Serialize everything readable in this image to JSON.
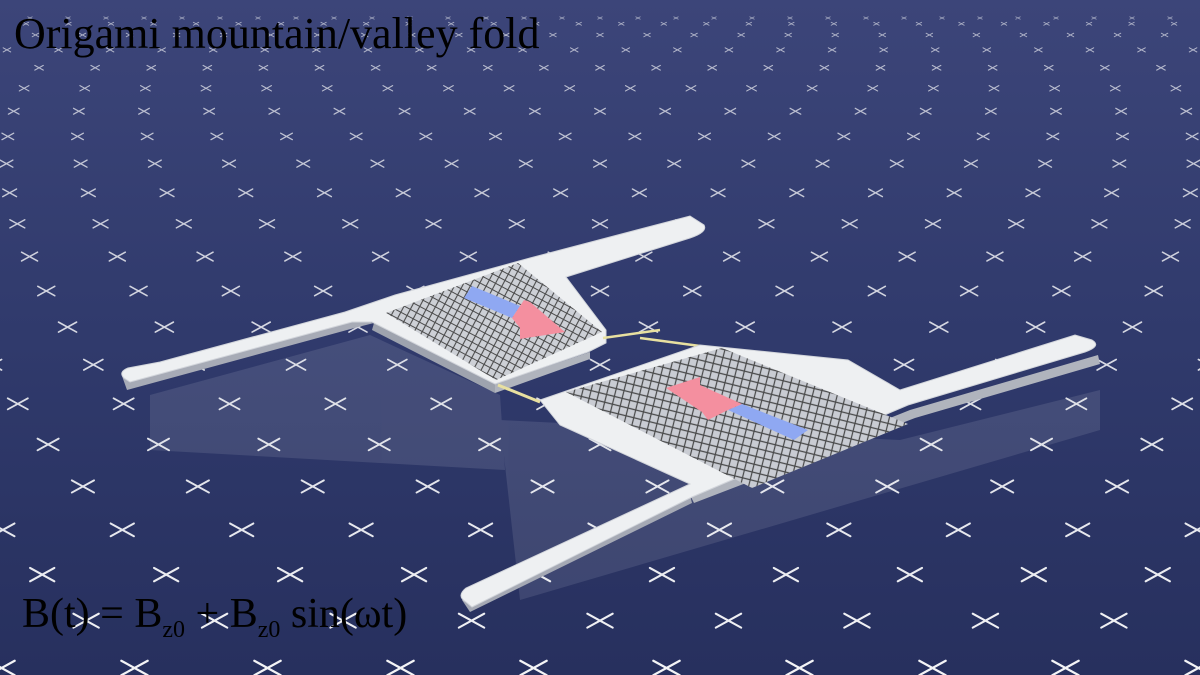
{
  "title": "Origami mountain/valley fold",
  "equation": {
    "lhs": "B(t) = B",
    "sub1": "z0",
    "plus": " + B",
    "sub2": "z0",
    "tail": " sin(ωt)"
  },
  "colors": {
    "background": "#2c3566",
    "markers": "#ffffff",
    "plate": "#eef0f2",
    "arrow_tail": "#8fa8f2",
    "arrow_head": "#f48f9f",
    "hinge": "#e8e0a0"
  },
  "icons": [
    "cross-marker-icon",
    "magnetization-arrow-icon"
  ]
}
